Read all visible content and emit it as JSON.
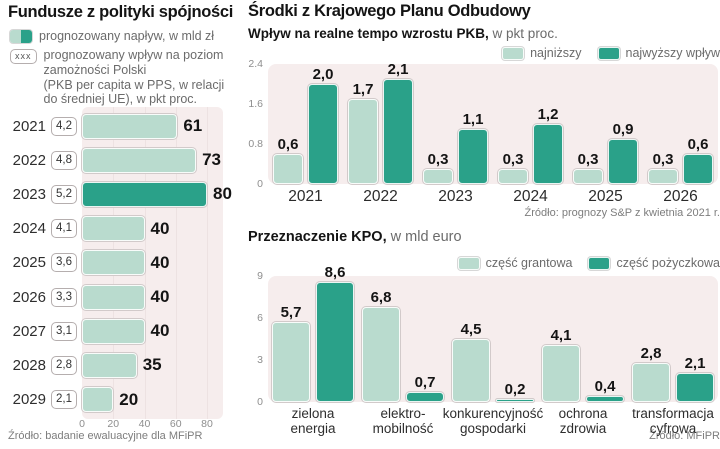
{
  "colors": {
    "light_green": "#b9dbce",
    "dark_teal": "#2aa189",
    "plot_bg": "#f6eded",
    "title_text": "#141414",
    "muted_text": "#6b6b6b",
    "axis_text": "#8e8e8e"
  },
  "left_panel": {
    "title": "Fundusze z polityki spójności",
    "legend": {
      "inflow_label": "prognozowany napływ, w mld zł",
      "impact_chip": "xxx",
      "impact_label": [
        "prognozowany wpływ na poziom",
        "zamożności Polski",
        "(PKB per capita w PPS, w relacji",
        "do średniej UE), w pkt proc."
      ]
    },
    "source": "Źródło: badanie ewaluacyjne dla MFiPR",
    "chart_data": {
      "type": "bar",
      "orientation": "horizontal",
      "title": "Fundusze z polityki spójności",
      "categories": [
        "2021",
        "2022",
        "2023",
        "2024",
        "2025",
        "2026",
        "2027",
        "2028",
        "2029"
      ],
      "values": [
        61,
        73,
        80,
        40,
        40,
        40,
        40,
        35,
        20
      ],
      "value_labels": [
        "61",
        "73",
        "80",
        "40",
        "40",
        "40",
        "40",
        "35",
        "20"
      ],
      "impact_chip_values": [
        "4,2",
        "4,8",
        "5,2",
        "4,1",
        "3,6",
        "3,3",
        "3,1",
        "2,8",
        "2,1"
      ],
      "highlight_index": 2,
      "xlim": [
        0,
        80
      ],
      "xticks": [
        0,
        20,
        40,
        60,
        80
      ],
      "units": "mld zł"
    }
  },
  "right_top": {
    "title": "Środki z Krajowego Planu Odbudowy",
    "subtitle_bold": "Wpływ na realne tempo wzrostu PKB,",
    "subtitle_rest": " w pkt proc.",
    "source": "Źródło: prognozy S&P z kwietnia 2021 r.",
    "chart_data": {
      "type": "bar",
      "categories": [
        "2021",
        "2022",
        "2023",
        "2024",
        "2025",
        "2026"
      ],
      "series": [
        {
          "name": "najniższy",
          "color": "light",
          "values": [
            0.6,
            1.7,
            0.3,
            0.3,
            0.3,
            0.3
          ],
          "labels": [
            "0,6",
            "1,7",
            "0,3",
            "0,3",
            "0,3",
            "0,3"
          ]
        },
        {
          "name": "najwyższy wpływ",
          "color": "dark",
          "values": [
            2.0,
            2.1,
            1.1,
            1.2,
            0.9,
            0.6
          ],
          "labels": [
            "2,0",
            "2,1",
            "1,1",
            "1,2",
            "0,9",
            "0,6"
          ]
        }
      ],
      "ylim": [
        0,
        2.4
      ],
      "yticks": [
        {
          "v": 0,
          "label": "0"
        },
        {
          "v": 0.8,
          "label": "0.8"
        },
        {
          "v": 1.6,
          "label": "1.6"
        },
        {
          "v": 2.4,
          "label": "2.4"
        }
      ],
      "legend_position": "top-right",
      "grid": false
    }
  },
  "right_bottom": {
    "title_bold": "Przeznaczenie KPO,",
    "title_rest": " w mld euro",
    "source": "Źródło: MFiPR",
    "chart_data": {
      "type": "bar",
      "categories": [
        "zielona\nenergia",
        "elektro-\nmobilność",
        "konkurencyjność\ngospodarki",
        "ochrona\nzdrowia",
        "transformacja\ncyfrowa"
      ],
      "series": [
        {
          "name": "część grantowa",
          "color": "light",
          "values": [
            5.7,
            6.8,
            4.5,
            4.1,
            2.8
          ],
          "labels": [
            "5,7",
            "6,8",
            "4,5",
            "4,1",
            "2,8"
          ]
        },
        {
          "name": "część pożyczkowa",
          "color": "dark",
          "values": [
            8.6,
            0.7,
            0.2,
            0.4,
            2.1
          ],
          "labels": [
            "8,6",
            "0,7",
            "0,2",
            "0,4",
            "2,1"
          ]
        }
      ],
      "ylim": [
        0,
        9
      ],
      "yticks": [
        {
          "v": 0,
          "label": "0"
        },
        {
          "v": 3,
          "label": "3"
        },
        {
          "v": 6,
          "label": "6"
        },
        {
          "v": 9,
          "label": "9"
        }
      ],
      "legend_position": "top-right",
      "grid": false
    }
  }
}
